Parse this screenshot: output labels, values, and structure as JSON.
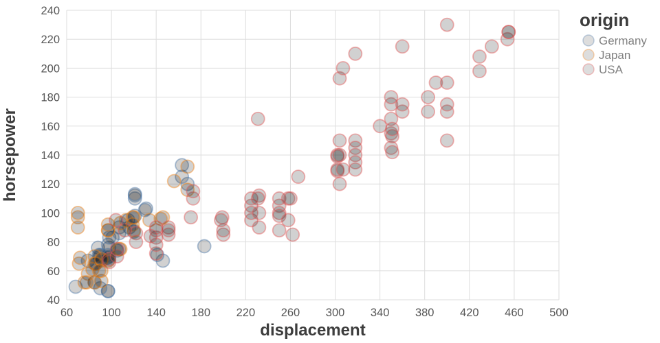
{
  "chart_data": {
    "type": "scatter",
    "title": "",
    "xlabel": "displacement",
    "ylabel": "horsepower",
    "xlim": [
      60,
      500
    ],
    "ylim": [
      40,
      240
    ],
    "xticks": [
      60,
      100,
      140,
      180,
      220,
      260,
      300,
      340,
      380,
      420,
      460,
      500
    ],
    "yticks": [
      40,
      60,
      80,
      100,
      120,
      140,
      160,
      180,
      200,
      220,
      240
    ],
    "grid": true,
    "legend_title": "origin",
    "legend_position": "right",
    "point_style": {
      "fill": "#1b1b1b",
      "fill_opacity": 0.2,
      "stroke_opacity": 0.45,
      "radius": 9.5,
      "stroke_width": 1.8
    },
    "series": [
      {
        "name": "Germany",
        "color": "#4c78a8",
        "points": [
          [
            97,
            46
          ],
          [
            97,
            46
          ],
          [
            90,
            48
          ],
          [
            68,
            49
          ],
          [
            79,
            67
          ],
          [
            88,
            76
          ],
          [
            90,
            70
          ],
          [
            90,
            71
          ],
          [
            89,
            71
          ],
          [
            96,
            69
          ],
          [
            105,
            74
          ],
          [
            98,
            76
          ],
          [
            97,
            78
          ],
          [
            97,
            71
          ],
          [
            98,
            83
          ],
          [
            101,
            83
          ],
          [
            107,
            90
          ],
          [
            116,
            90
          ],
          [
            115,
            95
          ],
          [
            121,
            98
          ],
          [
            121,
            110
          ],
          [
            121,
            112
          ],
          [
            121,
            113
          ],
          [
            131,
            103
          ],
          [
            146,
            67
          ],
          [
            141,
            71
          ],
          [
            183,
            77
          ],
          [
            168,
            120
          ],
          [
            163,
            125
          ],
          [
            163,
            133
          ],
          [
            130,
            102
          ],
          [
            120,
            87
          ],
          [
            107,
            86
          ],
          [
            86,
            65
          ],
          [
            85,
            52
          ],
          [
            98,
            70
          ]
        ]
      },
      {
        "name": "Japan",
        "color": "#f58518",
        "points": [
          [
            71,
            65
          ],
          [
            72,
            69
          ],
          [
            97,
            88
          ],
          [
            97,
            88
          ],
          [
            97,
            92
          ],
          [
            91,
            53
          ],
          [
            91,
            60
          ],
          [
            91,
            67
          ],
          [
            85,
            70
          ],
          [
            85,
            65
          ],
          [
            85,
            52
          ],
          [
            79,
            58
          ],
          [
            83,
            61
          ],
          [
            78,
            52
          ],
          [
            76,
            52
          ],
          [
            70,
            97
          ],
          [
            70,
            90
          ],
          [
            70,
            100
          ],
          [
            108,
            93
          ],
          [
            107,
            75
          ],
          [
            97,
            67
          ],
          [
            113,
            95
          ],
          [
            119,
            97
          ],
          [
            120,
            97
          ],
          [
            134,
            95
          ],
          [
            146,
            97
          ],
          [
            156,
            122
          ],
          [
            168,
            116
          ],
          [
            168,
            132
          ],
          [
            119,
            92
          ],
          [
            108,
            75
          ],
          [
            86,
            65
          ],
          [
            91,
            68
          ],
          [
            144,
            96
          ],
          [
            120,
            88
          ],
          [
            89,
            60
          ]
        ]
      },
      {
        "name": "USA",
        "color": "#e45756",
        "points": [
          [
            140,
            72
          ],
          [
            140,
            83
          ],
          [
            140,
            78
          ],
          [
            140,
            88
          ],
          [
            140,
            90
          ],
          [
            151,
            90
          ],
          [
            151,
            85
          ],
          [
            151,
            88
          ],
          [
            122,
            86
          ],
          [
            122,
            80
          ],
          [
            98,
            66
          ],
          [
            98,
            68
          ],
          [
            104,
            95
          ],
          [
            105,
            70
          ],
          [
            105,
            75
          ],
          [
            112,
            88
          ],
          [
            135,
            84
          ],
          [
            173,
            110
          ],
          [
            173,
            115
          ],
          [
            171,
            97
          ],
          [
            200,
            85
          ],
          [
            200,
            88
          ],
          [
            199,
            97
          ],
          [
            198,
            95
          ],
          [
            225,
            105
          ],
          [
            225,
            95
          ],
          [
            225,
            100
          ],
          [
            225,
            110
          ],
          [
            232,
            90
          ],
          [
            232,
            100
          ],
          [
            232,
            112
          ],
          [
            250,
            105
          ],
          [
            250,
            100
          ],
          [
            250,
            98
          ],
          [
            250,
            88
          ],
          [
            250,
            110
          ],
          [
            258,
            110
          ],
          [
            258,
            95
          ],
          [
            231,
            110
          ],
          [
            231,
            165
          ],
          [
            260,
            110
          ],
          [
            262,
            85
          ],
          [
            267,
            125
          ],
          [
            302,
            140
          ],
          [
            302,
            129
          ],
          [
            302,
            139
          ],
          [
            302,
            130
          ],
          [
            304,
            150
          ],
          [
            304,
            140
          ],
          [
            304,
            120
          ],
          [
            304,
            193
          ],
          [
            307,
            130
          ],
          [
            307,
            200
          ],
          [
            318,
            150
          ],
          [
            318,
            145
          ],
          [
            318,
            140
          ],
          [
            318,
            135
          ],
          [
            318,
            130
          ],
          [
            318,
            210
          ],
          [
            340,
            160
          ],
          [
            350,
            165
          ],
          [
            350,
            145
          ],
          [
            350,
            155
          ],
          [
            350,
            175
          ],
          [
            350,
            180
          ],
          [
            351,
            153
          ],
          [
            351,
            158
          ],
          [
            351,
            142
          ],
          [
            360,
            170
          ],
          [
            360,
            175
          ],
          [
            360,
            215
          ],
          [
            383,
            170
          ],
          [
            383,
            180
          ],
          [
            390,
            190
          ],
          [
            400,
            150
          ],
          [
            400,
            170
          ],
          [
            400,
            175
          ],
          [
            400,
            190
          ],
          [
            400,
            230
          ],
          [
            429,
            198
          ],
          [
            429,
            208
          ],
          [
            440,
            215
          ],
          [
            454,
            220
          ],
          [
            455,
            225
          ],
          [
            455,
            225
          ]
        ]
      }
    ]
  }
}
